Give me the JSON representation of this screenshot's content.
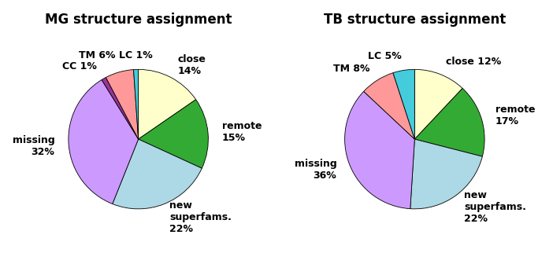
{
  "chart_data": [
    {
      "type": "pie",
      "title": "MG structure assignment",
      "categories": [
        "close\n14%",
        "remote\n15%",
        "new\nsuperfams.\n22%",
        "missing\n32%",
        "CC 1%",
        "TM 6%",
        "LC 1%"
      ],
      "values": [
        14,
        15,
        22,
        32,
        1,
        6,
        1
      ],
      "colors": [
        "#FFFFCC",
        "#33AA33",
        "#ADD8E6",
        "#CC99FF",
        "#993399",
        "#FF9999",
        "#44CCDD"
      ]
    },
    {
      "type": "pie",
      "title": "TB structure assignment",
      "categories": [
        "close 12%",
        "remote\n17%",
        "new\nsuperfams.\n22%",
        "missing\n36%",
        "TM 8%",
        "LC 5%"
      ],
      "values": [
        12,
        17,
        22,
        36,
        8,
        5
      ],
      "colors": [
        "#FFFFCC",
        "#33AA33",
        "#ADD8E6",
        "#CC99FF",
        "#FF9999",
        "#44CCDD"
      ]
    }
  ]
}
